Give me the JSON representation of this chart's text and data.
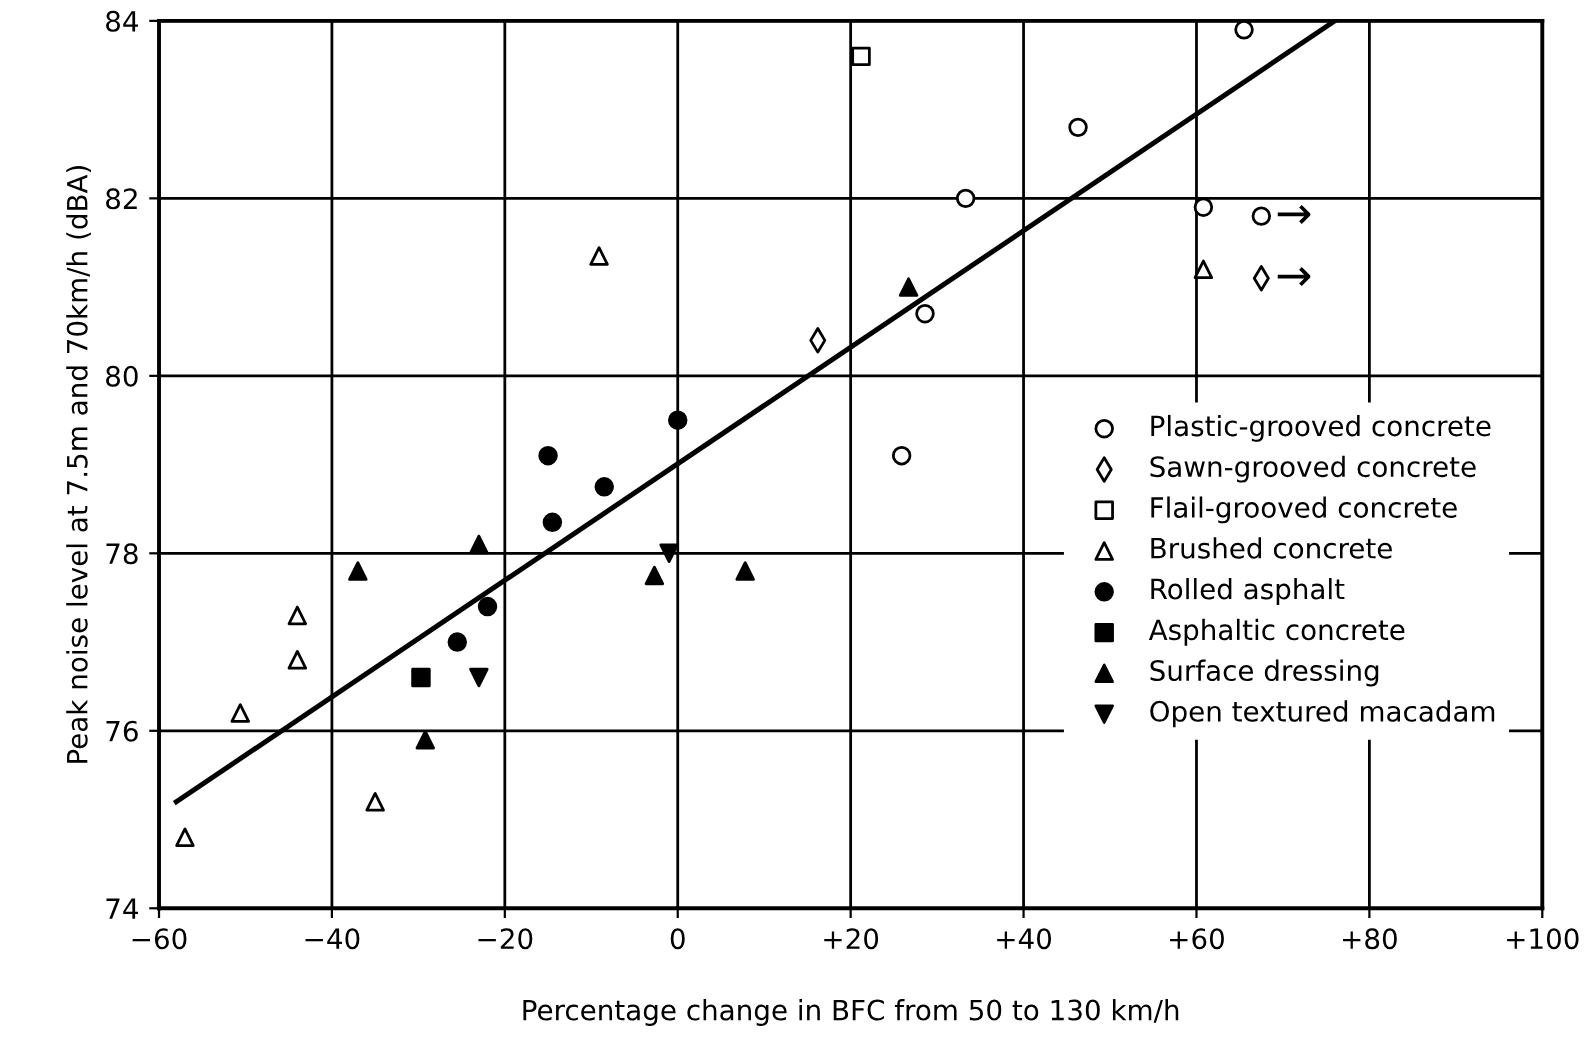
{
  "chart_data": {
    "type": "scatter",
    "xlabel": "Percentage change in BFC from 50 to 130 km/h",
    "ylabel": "Peak noise level at 7.5m and 70km/h (dBA)",
    "xlim": [
      -60,
      100
    ],
    "ylim": [
      74,
      84
    ],
    "xticks": [
      {
        "value": -60,
        "label": "−60"
      },
      {
        "value": -40,
        "label": "−40"
      },
      {
        "value": -20,
        "label": "−20"
      },
      0,
      {
        "value": 20,
        "label": "+20"
      },
      {
        "value": 40,
        "label": "+40"
      },
      {
        "value": 60,
        "label": "+60"
      },
      {
        "value": 80,
        "label": "+80"
      },
      {
        "value": 100,
        "label": "+100"
      }
    ],
    "yticks": [
      74,
      76,
      78,
      80,
      82,
      84
    ],
    "grid": true,
    "legend": "right",
    "series": [
      {
        "name": "Plastic-grooved concrete",
        "color": "#ffffff",
        "marker": "circle",
        "x": [
          65.5,
          46.3,
          33.3,
          60.8,
          67.5,
          28.6,
          25.9
        ],
        "values": [
          83.9,
          82.8,
          82.0,
          81.9,
          81.8,
          80.7,
          79.1
        ]
      },
      {
        "name": "Sawn-grooved concrete",
        "color": "#ffffff",
        "marker": "diamond",
        "x": [
          16.2,
          67.5
        ],
        "values": [
          80.4,
          81.1
        ]
      },
      {
        "name": "Flail-grooved concrete",
        "color": "#ffffff",
        "marker": "square",
        "x": [
          21.2
        ],
        "values": [
          83.6
        ]
      },
      {
        "name": "Brushed concrete",
        "color": "#ffffff",
        "marker": "triangle",
        "x": [
          -9.1,
          60.8,
          -44,
          -44,
          -50.6,
          -35,
          -57
        ],
        "values": [
          81.35,
          81.2,
          77.3,
          76.8,
          76.2,
          75.2,
          74.8
        ]
      },
      {
        "name": "Rolled asphalt",
        "color": "#000000",
        "marker": "circle",
        "x": [
          0,
          -15,
          -8.5,
          -14.5,
          -22,
          -25.5
        ],
        "values": [
          79.5,
          79.1,
          78.75,
          78.35,
          77.4,
          77.0
        ]
      },
      {
        "name": "Asphaltic concrete",
        "color": "#000000",
        "marker": "square",
        "x": [
          -29.7
        ],
        "values": [
          76.6
        ]
      },
      {
        "name": "Surface dressing",
        "color": "#000000",
        "marker": "triangle",
        "x": [
          26.7,
          -23,
          -37,
          -2.7,
          7.8,
          -29.2
        ],
        "values": [
          81.0,
          78.1,
          77.8,
          77.75,
          77.8,
          75.9
        ]
      },
      {
        "name": "Open textured macadam",
        "color": "#000000",
        "marker": "triangle_down",
        "x": [
          -23,
          -1
        ],
        "values": [
          76.6,
          78.0
        ]
      },
      {
        "type": "line",
        "color": "#000000",
        "marker": "none",
        "line_style": "solid",
        "x": [
          -58,
          76
        ],
        "values": [
          75.2,
          84.0
        ]
      }
    ],
    "annotations": [
      {
        "text": "→",
        "x": 67.5,
        "y": 81.8
      },
      {
        "text": "→",
        "x": 67.5,
        "y": 81.1
      }
    ]
  }
}
